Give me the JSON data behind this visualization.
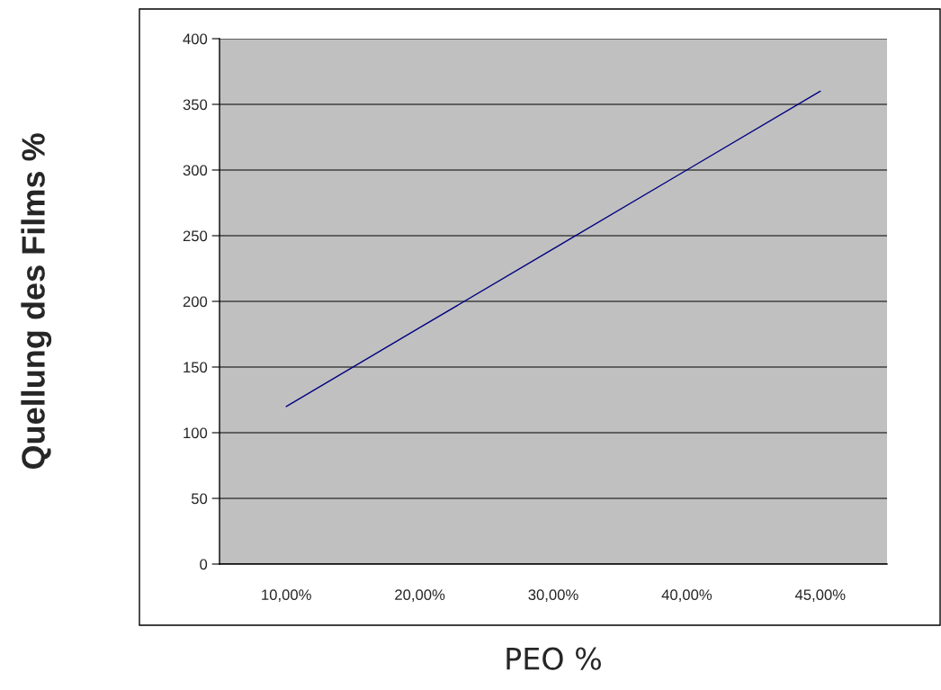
{
  "chart_data": {
    "type": "line",
    "xlabel": "PEO %",
    "ylabel": "Quellung des Films %",
    "categories": [
      "10,00%",
      "20,00%",
      "30,00%",
      "40,00%",
      "45,00%"
    ],
    "series": [
      {
        "color": "#000080",
        "values": [
          120,
          180,
          240,
          300,
          360
        ]
      }
    ],
    "ylim": [
      0,
      400
    ],
    "yticks": [
      0,
      50,
      100,
      150,
      200,
      250,
      300,
      350,
      400
    ],
    "grid": "y",
    "marker": "none",
    "line_style": "solid"
  }
}
